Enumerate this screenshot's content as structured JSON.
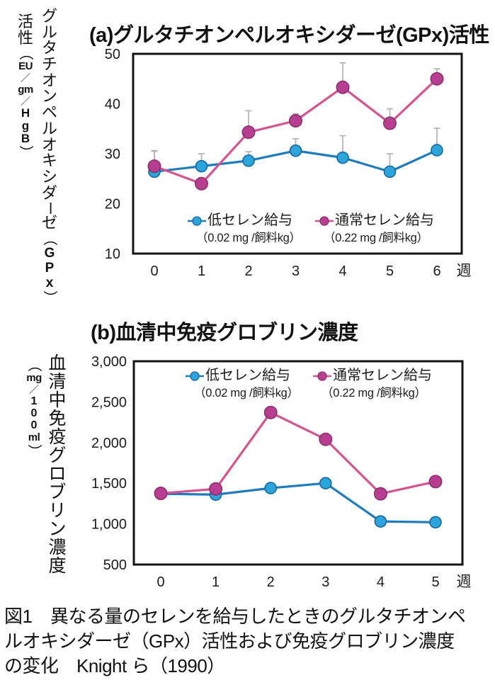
{
  "colors": {
    "blue": {
      "line": "#1d7cc0",
      "fill": "#2ca4dc",
      "stroke": "#16689f"
    },
    "pink": {
      "line": "#d6538f",
      "fill": "#b83e92",
      "stroke": "#8c2f6d"
    },
    "error_bar": "#b5b2b0",
    "frame": "#141414",
    "text": "#1c1c1c"
  },
  "chart_data": [
    {
      "id": "gpx",
      "type": "line",
      "title": "(a)グルタチオンペルオキシダーゼ(GPx)活性",
      "ylabel": "グルタチオンペルオキシダーゼ（GPx）活性（EU/gm/HgB）",
      "ylabel_main": [
        "グ",
        "ル",
        "タ",
        "チ",
        "オ",
        "ン",
        "ペ",
        "ル",
        "オ",
        "キ",
        "シ",
        "ダ",
        "ー",
        "ゼ",
        "（",
        "G",
        "P",
        "x",
        "）"
      ],
      "ylabel_sub": [
        "活",
        "性",
        "（",
        "EU",
        "／",
        "gm",
        "／",
        "H",
        "g",
        "B",
        "）"
      ],
      "xunit": "週",
      "x": [
        "0",
        "1",
        "2",
        "3",
        "4",
        "5",
        "6"
      ],
      "ylim": [
        10,
        50
      ],
      "yticks": [
        "50",
        "40",
        "30",
        "20",
        "10"
      ],
      "grid": false,
      "legend_position": "inside-bottom",
      "series": [
        {
          "name": "低セレン給与",
          "dose": "（0.02 mg /飼料kg）",
          "color": "blue",
          "values": [
            26.4,
            27.5,
            28.6,
            30.6,
            29.2,
            26.4,
            30.7
          ],
          "err_top": [
            30.5,
            30.0,
            30.4,
            33.0,
            33.6,
            30.0,
            35.1
          ]
        },
        {
          "name": "通常セレン給与",
          "dose": "（0.22 mg /飼料kg）",
          "color": "pink",
          "values": [
            27.5,
            24.0,
            34.3,
            36.6,
            43.3,
            36.1,
            45.0
          ],
          "err_top": [
            30.6,
            25.0,
            38.6,
            38.0,
            48.2,
            39.0,
            47.0
          ]
        }
      ]
    },
    {
      "id": "ig",
      "type": "line",
      "title": "(b)血清中免疫グロブリン濃度",
      "ylabel": "血清中免疫グロブリン濃度（mg/100ml）",
      "ylabel_main": [
        "血",
        "清",
        "中",
        "免",
        "疫",
        "グ",
        "ロ",
        "ブ",
        "リ",
        "ン",
        "濃",
        "度"
      ],
      "ylabel_sub": [
        "（",
        "mg",
        "／",
        "1",
        "0",
        "0",
        "ml",
        "）"
      ],
      "xunit": "週",
      "x": [
        "0",
        "1",
        "2",
        "3",
        "4",
        "5"
      ],
      "ylim": [
        500,
        3000
      ],
      "yticks": [
        "3,000",
        "2,500",
        "2,000",
        "1,500",
        "1,000",
        "500"
      ],
      "grid": false,
      "legend_position": "inside-top",
      "series": [
        {
          "name": "低セレン給与",
          "dose": "（0.02 mg /飼料kg）",
          "color": "blue",
          "values": [
            1370,
            1360,
            1440,
            1500,
            1030,
            1020
          ]
        },
        {
          "name": "通常セレン給与",
          "dose": "（0.22 mg /飼料kg）",
          "color": "pink",
          "values": [
            1375,
            1430,
            2370,
            2040,
            1370,
            1520
          ]
        }
      ]
    }
  ],
  "caption": {
    "lines": [
      "図1　異なる量のセレンを給与したときのグルタチオンペ",
      "ルオキシダーゼ（GPx）活性および免疫グロブリン濃度",
      "の変化　Knight ら（1990）"
    ]
  }
}
